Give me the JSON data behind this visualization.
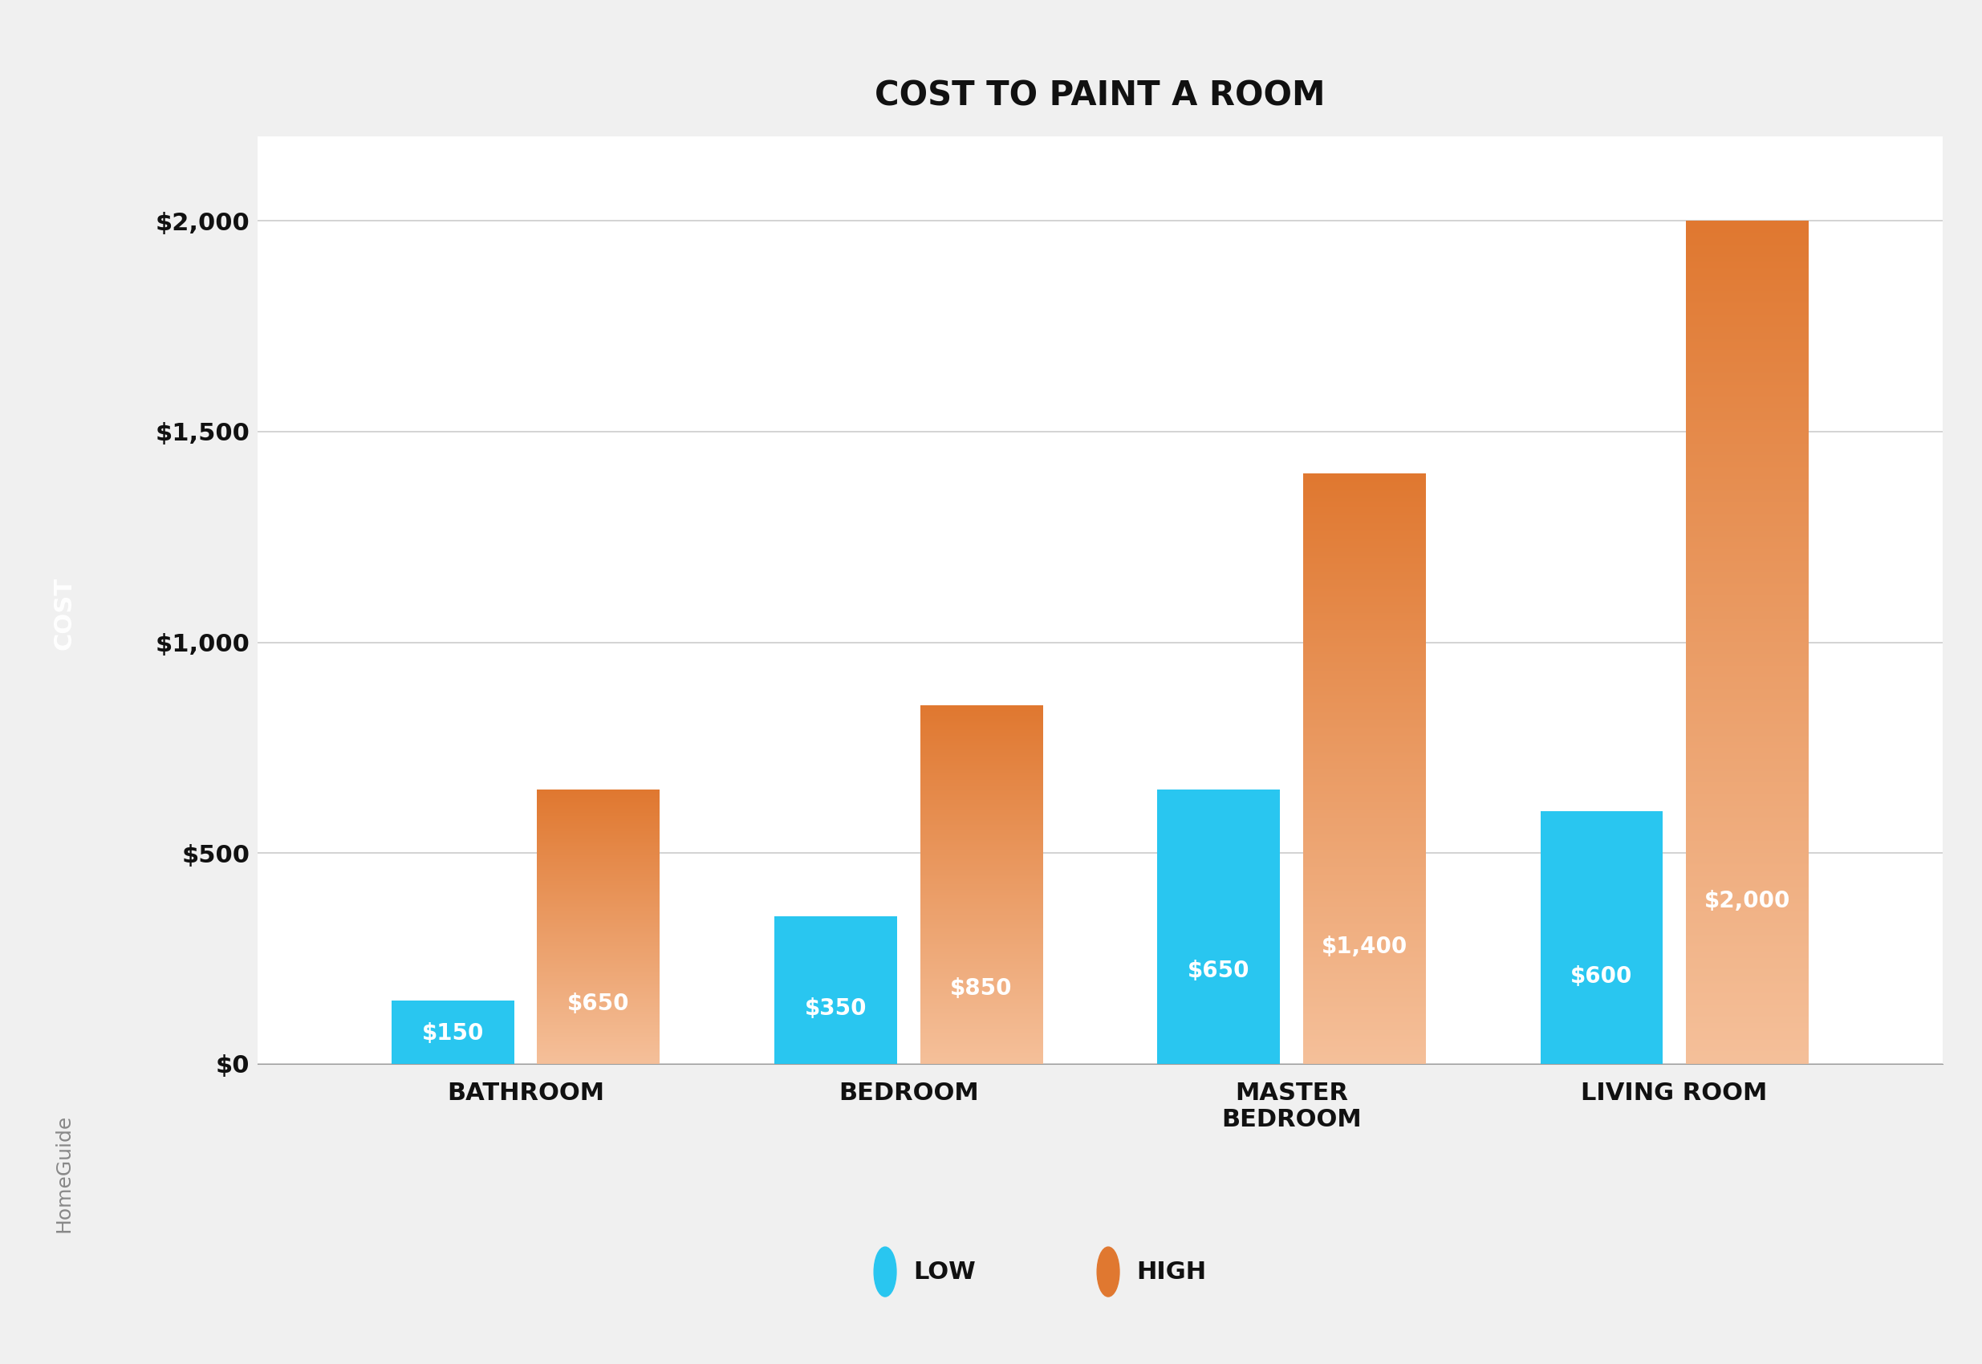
{
  "title": "COST TO PAINT A ROOM",
  "categories": [
    "BATHROOM",
    "BEDROOM",
    "MASTER\nBEDROOM",
    "LIVING ROOM"
  ],
  "low_values": [
    150,
    350,
    650,
    600
  ],
  "high_values": [
    650,
    850,
    1400,
    2000
  ],
  "low_labels": [
    "$150",
    "$350",
    "$650",
    "$600"
  ],
  "high_labels": [
    "$650",
    "$850",
    "$1,400",
    "$2,000"
  ],
  "low_color": "#29C6F0",
  "high_color_top": "#E07830",
  "high_color_bottom": "#F5C09A",
  "ylabel": "COST",
  "ylim": [
    0,
    2200
  ],
  "yticks": [
    0,
    500,
    1000,
    1500,
    2000
  ],
  "ytick_labels": [
    "$0",
    "$500",
    "$1,000",
    "$1,500",
    "$2,000"
  ],
  "background_color": "#F0F0F0",
  "plot_bg_color": "#FFFFFF",
  "left_panel_color": "#111111",
  "legend_dot_low": "#29C6F0",
  "legend_dot_high": "#E07830",
  "title_fontsize": 30,
  "axis_label_fontsize": 22,
  "tick_fontsize": 22,
  "bar_label_fontsize": 20,
  "legend_fontsize": 22,
  "bar_width": 0.32,
  "homeguide_fontsize": 18
}
